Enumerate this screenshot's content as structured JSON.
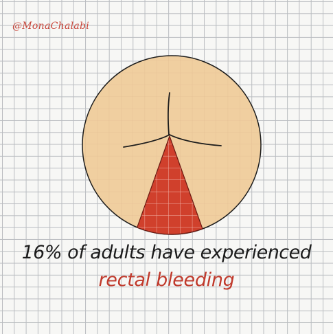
{
  "credit": "@MonaChalabi",
  "headline": "16% of adults have experienced",
  "highlight": "rectal bleeding",
  "colors": {
    "skin": "#f0cfa0",
    "wedge": "#d0402c",
    "ink": "#1c1c1c",
    "accent": "#c0392b"
  },
  "chart_data": {
    "type": "pie",
    "values": [
      16,
      84
    ],
    "labels": [
      "rectal bleeding",
      ""
    ],
    "title": "16% of adults have experienced rectal bleeding"
  }
}
